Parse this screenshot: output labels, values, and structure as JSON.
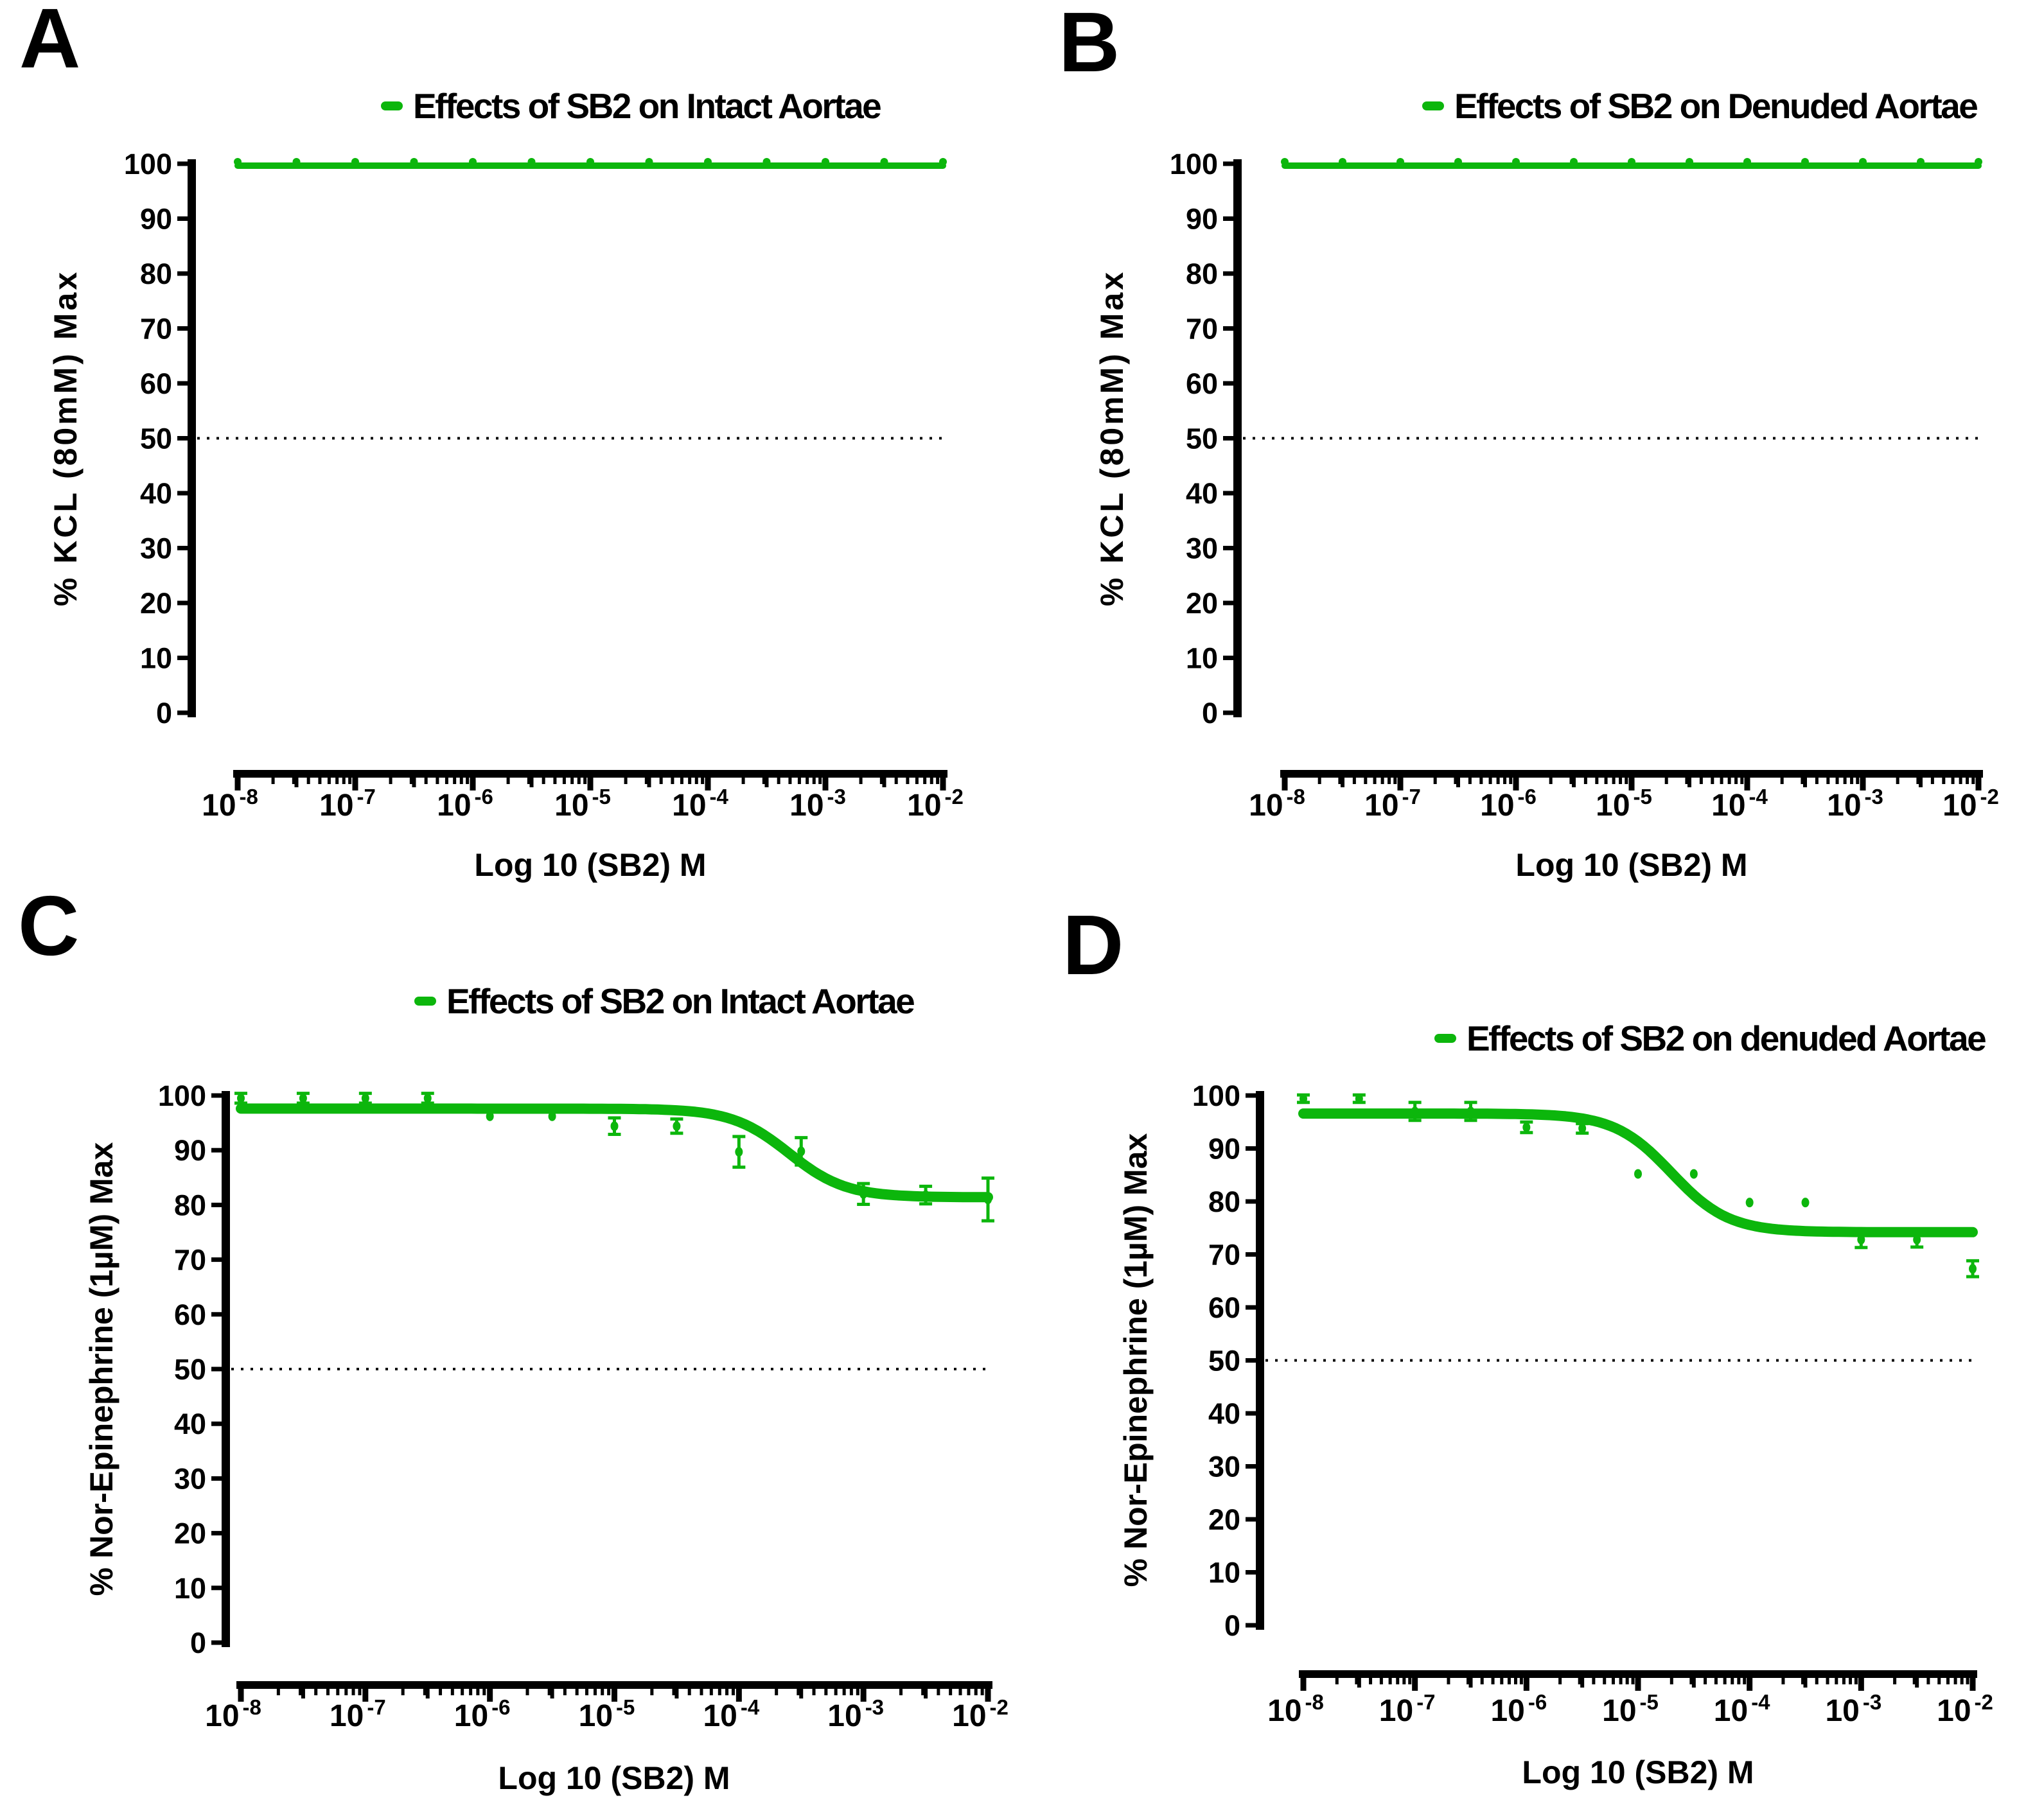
{
  "figure": {
    "background": "#ffffff",
    "accent_green": "#0cb60c",
    "reference_line_color": "#000000"
  },
  "chart_data": [
    {
      "panel_label": "A",
      "type": "line",
      "legend": "Effects of SB2 on Intact Aortae",
      "legend_position": "top",
      "xlabel": "Log 10 (SB2) M",
      "ylabel": "% KCL (80mM) Max",
      "x_scale": "log10",
      "x_tick_exponents": [
        -8,
        -7,
        -6,
        -5,
        -4,
        -3,
        -2
      ],
      "ylim": [
        0,
        100
      ],
      "y_ticks": [
        0,
        10,
        20,
        30,
        40,
        50,
        60,
        70,
        80,
        90,
        100
      ],
      "reference_line_y": 50,
      "grid": false,
      "color": "#0cb60c",
      "series": [
        {
          "name": "Effects of SB2 on Intact Aortae",
          "x_log10": [
            -8,
            -7.5,
            -7,
            -6.5,
            -6,
            -5.5,
            -5,
            -4.5,
            -4,
            -3.5,
            -3,
            -2.5,
            -2
          ],
          "values": [
            100,
            100,
            100,
            100,
            100,
            100,
            100,
            100,
            100,
            100,
            100,
            100,
            100
          ],
          "errors": [
            0,
            0,
            0,
            0,
            0,
            0,
            0,
            0,
            0,
            0,
            0,
            0,
            0
          ],
          "fit": {
            "top": 100,
            "bottom": 100,
            "log_ic50": null,
            "hill": null
          }
        }
      ]
    },
    {
      "panel_label": "B",
      "type": "line",
      "legend": "Effects of SB2 on Denuded Aortae",
      "legend_position": "top",
      "xlabel": "Log 10 (SB2) M",
      "ylabel": "% KCL (80mM) Max",
      "x_scale": "log10",
      "x_tick_exponents": [
        -8,
        -7,
        -6,
        -5,
        -4,
        -3,
        -2
      ],
      "ylim": [
        0,
        100
      ],
      "y_ticks": [
        0,
        10,
        20,
        30,
        40,
        50,
        60,
        70,
        80,
        90,
        100
      ],
      "reference_line_y": 50,
      "grid": false,
      "color": "#0cb60c",
      "series": [
        {
          "name": "Effects of SB2 on Denuded Aortae",
          "x_log10": [
            -8,
            -7.5,
            -7,
            -6.5,
            -6,
            -5.5,
            -5,
            -4.5,
            -4,
            -3.5,
            -3,
            -2.5,
            -2
          ],
          "values": [
            100,
            100,
            100,
            100,
            100,
            100,
            100,
            100,
            100,
            100,
            100,
            100,
            100
          ],
          "errors": [
            0,
            0,
            0,
            0,
            0,
            0,
            0,
            0,
            0,
            0,
            0,
            0,
            0
          ],
          "fit": {
            "top": 100,
            "bottom": 100,
            "log_ic50": null,
            "hill": null
          }
        }
      ]
    },
    {
      "panel_label": "C",
      "type": "line",
      "legend": "Effects of SB2 on Intact Aortae",
      "legend_position": "top",
      "xlabel": "Log 10 (SB2) M",
      "ylabel": "% Nor-Epinephrine (1µM) Max",
      "x_scale": "log10",
      "x_tick_exponents": [
        -8,
        -7,
        -6,
        -5,
        -4,
        -3,
        -2
      ],
      "ylim": [
        0,
        100
      ],
      "y_ticks": [
        0,
        10,
        20,
        30,
        40,
        50,
        60,
        70,
        80,
        90,
        100
      ],
      "reference_line_y": 50,
      "grid": false,
      "color": "#0cb60c",
      "series": [
        {
          "name": "Effects of SB2 on Intact Aortae",
          "x_log10": [
            -8,
            -7.5,
            -7,
            -6.5,
            -6,
            -5.5,
            -5,
            -4.5,
            -4,
            -3.5,
            -3,
            -2.5,
            -2
          ],
          "values": [
            99.5,
            99.5,
            99.5,
            99.5,
            96.2,
            96.2,
            94.4,
            94.4,
            89.7,
            89.8,
            82.0,
            81.8,
            81.0
          ],
          "errors": [
            0.9,
            0.9,
            0.9,
            0.9,
            0,
            0,
            1.5,
            1.3,
            2.8,
            2.5,
            1.9,
            1.6,
            3.9
          ],
          "fit": {
            "top": 97.6,
            "bottom": 81.4,
            "log_ic50": -3.6,
            "hill": 1.9
          }
        }
      ]
    },
    {
      "panel_label": "D",
      "type": "line",
      "legend": "Effects of SB2 on denuded Aortae",
      "legend_position": "top",
      "xlabel": "Log 10 (SB2) M",
      "ylabel": "% Nor-Epinephrine (1µM) Max",
      "x_scale": "log10",
      "x_tick_exponents": [
        -8,
        -7,
        -6,
        -5,
        -4,
        -3,
        -2
      ],
      "ylim": [
        0,
        100
      ],
      "y_ticks": [
        0,
        10,
        20,
        30,
        40,
        50,
        60,
        70,
        80,
        90,
        100
      ],
      "reference_line_y": 50,
      "grid": false,
      "color": "#0cb60c",
      "series": [
        {
          "name": "Effects of SB2 on denuded Aortae",
          "x_log10": [
            -8,
            -7.5,
            -7,
            -6.5,
            -6,
            -5.5,
            -5,
            -4.5,
            -4,
            -3.5,
            -3,
            -2.5,
            -2
          ],
          "values": [
            99.4,
            99.4,
            97.0,
            97.0,
            94.0,
            93.8,
            85.2,
            85.2,
            79.8,
            79.8,
            72.8,
            72.8,
            67.3
          ],
          "errors": [
            0.7,
            0.7,
            1.7,
            1.7,
            1.0,
            0.9,
            0,
            0,
            0,
            0,
            1.5,
            1.4,
            1.5
          ],
          "fit": {
            "top": 96.6,
            "bottom": 74.2,
            "log_ic50": -4.7,
            "hill": 1.7
          }
        }
      ]
    }
  ]
}
